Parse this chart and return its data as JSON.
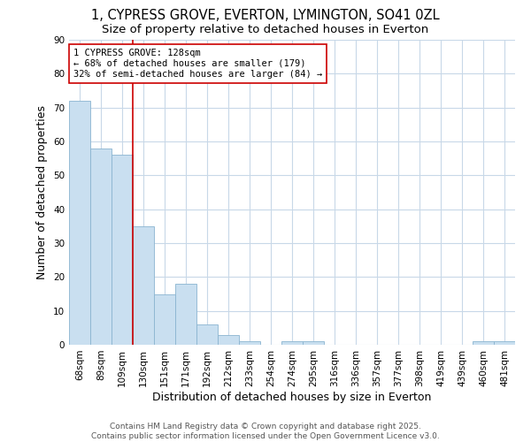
{
  "title_line1": "1, CYPRESS GROVE, EVERTON, LYMINGTON, SO41 0ZL",
  "title_line2": "Size of property relative to detached houses in Everton",
  "xlabel": "Distribution of detached houses by size in Everton",
  "ylabel": "Number of detached properties",
  "bar_labels": [
    "68sqm",
    "89sqm",
    "109sqm",
    "130sqm",
    "151sqm",
    "171sqm",
    "192sqm",
    "212sqm",
    "233sqm",
    "254sqm",
    "274sqm",
    "295sqm",
    "316sqm",
    "336sqm",
    "357sqm",
    "377sqm",
    "398sqm",
    "419sqm",
    "439sqm",
    "460sqm",
    "481sqm"
  ],
  "bar_values": [
    72,
    58,
    56,
    35,
    15,
    18,
    6,
    3,
    1,
    0,
    1,
    1,
    0,
    0,
    0,
    0,
    0,
    0,
    0,
    1,
    1
  ],
  "bar_color": "#c9dff0",
  "bar_edge_color": "#8ab4d0",
  "plot_bg_color": "#ffffff",
  "fig_bg_color": "#ffffff",
  "grid_color": "#c8d8e8",
  "vline_x_index": 2.5,
  "vline_color": "#cc0000",
  "ylim": [
    0,
    90
  ],
  "yticks": [
    0,
    10,
    20,
    30,
    40,
    50,
    60,
    70,
    80,
    90
  ],
  "annotation_text": "1 CYPRESS GROVE: 128sqm\n← 68% of detached houses are smaller (179)\n32% of semi-detached houses are larger (84) →",
  "annotation_box_color": "#ffffff",
  "annotation_box_edge": "#cc0000",
  "footer_text": "Contains HM Land Registry data © Crown copyright and database right 2025.\nContains public sector information licensed under the Open Government Licence v3.0.",
  "title_fontsize": 10.5,
  "subtitle_fontsize": 9.5,
  "axis_label_fontsize": 9,
  "tick_fontsize": 7.5,
  "annotation_fontsize": 7.5,
  "footer_fontsize": 6.5
}
